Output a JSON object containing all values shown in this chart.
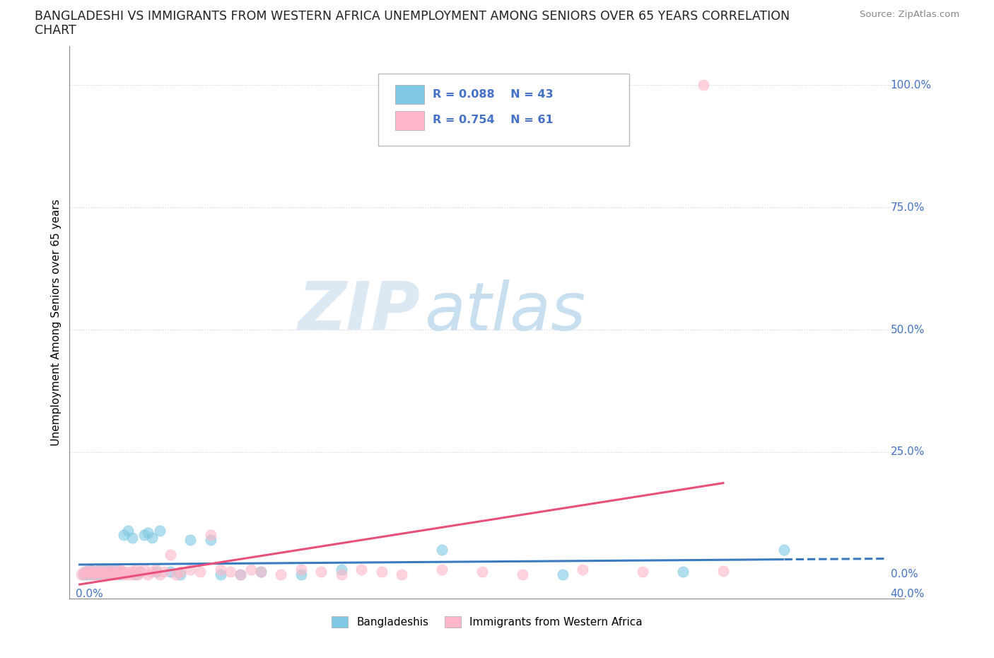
{
  "title_line1": "BANGLADESHI VS IMMIGRANTS FROM WESTERN AFRICA UNEMPLOYMENT AMONG SENIORS OVER 65 YEARS CORRELATION",
  "title_line2": "CHART",
  "source": "Source: ZipAtlas.com",
  "ylabel": "Unemployment Among Seniors over 65 years",
  "ytick_labels": [
    "0.0%",
    "25.0%",
    "50.0%",
    "75.0%",
    "100.0%"
  ],
  "ytick_values": [
    0.0,
    0.25,
    0.5,
    0.75,
    1.0
  ],
  "xlim": [
    0.0,
    0.4
  ],
  "ylim": [
    -0.05,
    1.08
  ],
  "r_bangladeshi": 0.088,
  "n_bangladeshi": 43,
  "r_western_africa": 0.754,
  "n_western_africa": 61,
  "color_bangladeshi": "#7ec8e3",
  "color_western_africa": "#ffb6c8",
  "color_trend_bangladeshi": "#3a7abf",
  "color_trend_western_africa": "#e8507a",
  "watermark_zip": "ZIP",
  "watermark_atlas": "atlas",
  "legend_label_1": "Bangladeshis",
  "legend_label_2": "Immigrants from Western Africa",
  "bd_x": [
    0.002,
    0.003,
    0.004,
    0.005,
    0.006,
    0.007,
    0.008,
    0.009,
    0.01,
    0.011,
    0.012,
    0.013,
    0.014,
    0.015,
    0.016,
    0.017,
    0.018,
    0.019,
    0.02,
    0.021,
    0.022,
    0.024,
    0.026,
    0.028,
    0.03,
    0.032,
    0.034,
    0.036,
    0.038,
    0.04,
    0.045,
    0.05,
    0.055,
    0.065,
    0.07,
    0.08,
    0.09,
    0.11,
    0.13,
    0.18,
    0.24,
    0.3,
    0.35
  ],
  "bd_y": [
    0.0,
    0.005,
    0.0,
    0.01,
    0.0,
    0.005,
    0.0,
    0.0,
    0.01,
    0.005,
    0.0,
    0.005,
    0.01,
    0.0,
    0.005,
    0.0,
    0.01,
    0.005,
    0.0,
    0.005,
    0.08,
    0.09,
    0.075,
    0.0,
    0.005,
    0.08,
    0.085,
    0.075,
    0.005,
    0.09,
    0.005,
    0.0,
    0.07,
    0.07,
    0.0,
    0.0,
    0.005,
    0.0,
    0.01,
    0.05,
    0.0,
    0.005,
    0.05
  ],
  "wa_x": [
    0.001,
    0.002,
    0.003,
    0.004,
    0.005,
    0.006,
    0.007,
    0.008,
    0.009,
    0.01,
    0.011,
    0.012,
    0.013,
    0.014,
    0.015,
    0.016,
    0.017,
    0.018,
    0.019,
    0.02,
    0.021,
    0.022,
    0.023,
    0.024,
    0.025,
    0.026,
    0.027,
    0.028,
    0.029,
    0.03,
    0.032,
    0.034,
    0.036,
    0.038,
    0.04,
    0.042,
    0.045,
    0.048,
    0.05,
    0.055,
    0.06,
    0.065,
    0.07,
    0.075,
    0.08,
    0.085,
    0.09,
    0.1,
    0.11,
    0.12,
    0.13,
    0.14,
    0.15,
    0.16,
    0.18,
    0.2,
    0.22,
    0.25,
    0.28,
    0.32,
    0.31
  ],
  "wa_y": [
    0.0,
    0.005,
    0.0,
    0.005,
    0.01,
    0.0,
    0.005,
    0.0,
    0.005,
    0.01,
    0.0,
    0.005,
    0.0,
    0.005,
    0.01,
    0.0,
    0.005,
    0.0,
    0.005,
    0.01,
    0.005,
    0.0,
    0.005,
    0.0,
    0.005,
    0.0,
    0.005,
    0.01,
    0.0,
    0.005,
    0.01,
    0.0,
    0.005,
    0.01,
    0.0,
    0.005,
    0.04,
    0.0,
    0.005,
    0.01,
    0.005,
    0.08,
    0.01,
    0.005,
    0.0,
    0.01,
    0.005,
    0.0,
    0.01,
    0.005,
    0.0,
    0.01,
    0.005,
    0.0,
    0.01,
    0.005,
    0.0,
    0.01,
    0.005,
    0.007,
    1.0
  ]
}
